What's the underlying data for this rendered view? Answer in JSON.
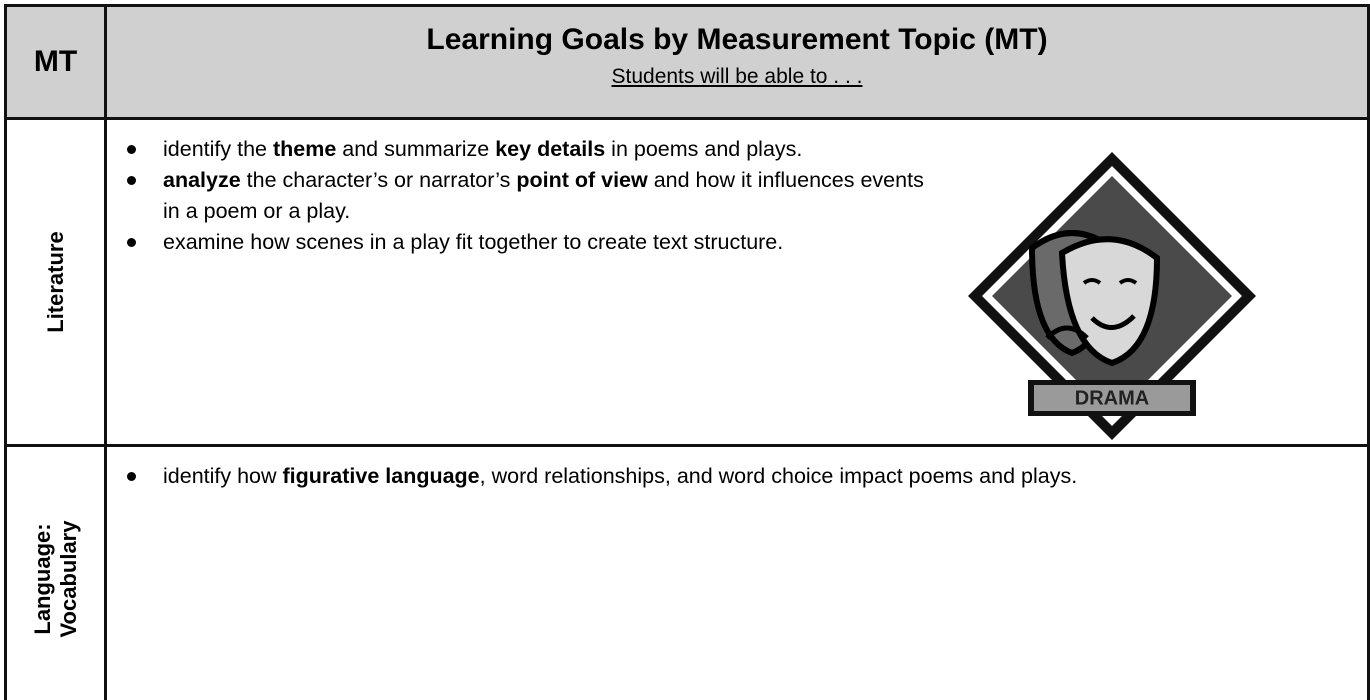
{
  "header": {
    "topic": "MT",
    "title": "Learning Goals by Measurement Topic (MT)",
    "subtitle": "Students will be able to . . ."
  },
  "rows": [
    {
      "topic": [
        "Literature"
      ],
      "goals": [
        [
          {
            "text": "identify the ",
            "bold": false
          },
          {
            "text": "theme",
            "bold": true
          },
          {
            "text": " and summarize ",
            "bold": false
          },
          {
            "text": "key details",
            "bold": true
          },
          {
            "text": " in poems and plays.",
            "bold": false
          }
        ],
        [
          {
            "text": "analyze",
            "bold": true
          },
          {
            "text": " the character’s or narrator’s ",
            "bold": false
          },
          {
            "text": "point of view",
            "bold": true
          },
          {
            "text": " and how it influences events in a poem or a play.",
            "bold": false
          }
        ],
        [
          {
            "text": "examine how scenes in a play fit together to create text structure.",
            "bold": false
          }
        ]
      ],
      "goal_width": 820
    },
    {
      "topic": [
        "Language:",
        "Vocabulary"
      ],
      "goals": [
        [
          {
            "text": "identify how ",
            "bold": false
          },
          {
            "text": "figurative language",
            "bold": true
          },
          {
            "text": ", word relationships, and word choice impact poems and plays.",
            "bold": false
          }
        ]
      ],
      "goal_width": 1200
    }
  ],
  "image_label": "DRAMA"
}
